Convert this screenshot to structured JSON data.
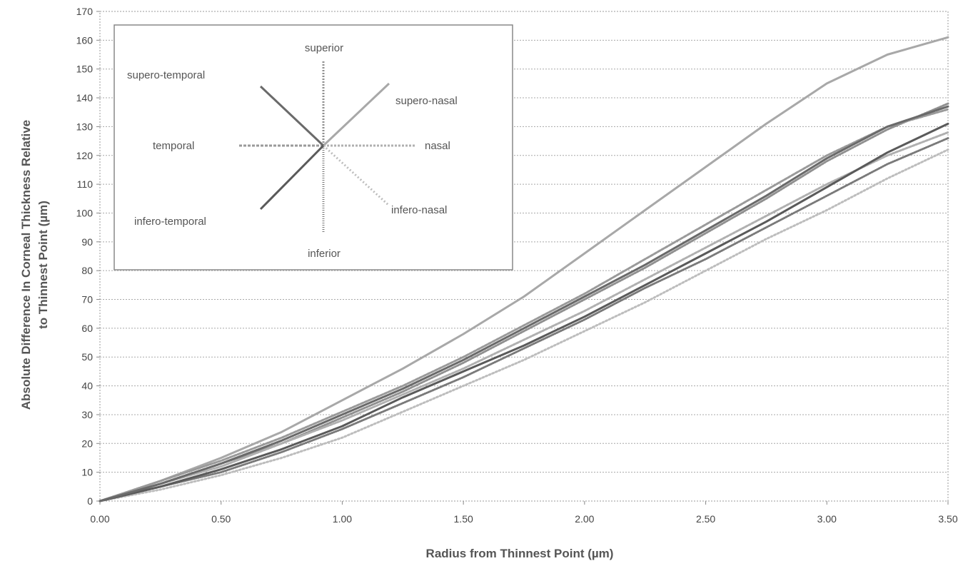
{
  "chart_data": {
    "type": "line",
    "title": "",
    "xlabel": "Radius from Thinnest Point (µm)",
    "ylabel_lines": [
      "Absolute Difference In Corneal Thickness Relative",
      "to Thinnest Point (µm)"
    ],
    "xlim": [
      0,
      3.5
    ],
    "ylim": [
      0,
      170
    ],
    "x_ticks": [
      0,
      0.5,
      1.0,
      1.5,
      2.0,
      2.5,
      3.0,
      3.5
    ],
    "x_tick_labels": [
      "0.00",
      "0.50",
      "1.00",
      "1.50",
      "2.00",
      "2.50",
      "3.00",
      "3.50"
    ],
    "y_ticks": [
      0,
      10,
      20,
      30,
      40,
      50,
      60,
      70,
      80,
      90,
      100,
      110,
      120,
      130,
      140,
      150,
      160,
      170
    ],
    "y_tick_labels": [
      "0",
      "10",
      "20",
      "30",
      "40",
      "50",
      "60",
      "70",
      "80",
      "90",
      "100",
      "110",
      "120",
      "130",
      "140",
      "150",
      "160",
      "170"
    ],
    "grid": "horizontal dotted",
    "legend_placement": "top-left",
    "x": [
      0,
      0.25,
      0.5,
      0.75,
      1.0,
      1.25,
      1.5,
      1.75,
      2.0,
      2.25,
      2.5,
      2.75,
      3.0,
      3.25,
      3.5
    ],
    "series": [
      {
        "name": "superior",
        "color": "#909090",
        "dash": "2,2",
        "values": [
          0,
          6,
          13,
          20,
          29,
          38,
          48,
          59,
          70,
          81,
          93,
          105,
          118,
          129,
          138
        ]
      },
      {
        "name": "supero-nasal",
        "color": "#a8a8a8",
        "dash": "",
        "values": [
          0,
          7,
          15,
          24,
          35,
          46,
          58,
          71,
          86,
          101,
          116,
          131,
          145,
          155,
          161
        ]
      },
      {
        "name": "nasal",
        "color": "#b0b0b0",
        "dash": "3,2",
        "values": [
          0,
          6,
          12,
          20,
          28,
          37,
          46,
          56,
          66,
          77,
          88,
          99,
          110,
          120,
          128
        ]
      },
      {
        "name": "inferO-nasal",
        "color": "#bdbdbd",
        "dash": "2,3",
        "values": [
          0,
          4,
          9,
          15,
          22,
          31,
          40,
          49,
          59,
          69,
          80,
          91,
          101,
          112,
          122
        ]
      },
      {
        "name": "inferior",
        "color": "#7a7a7a",
        "dash": "1,2",
        "values": [
          0,
          5,
          10,
          17,
          25,
          34,
          43,
          53,
          63,
          74,
          84,
          95,
          106,
          117,
          126
        ]
      },
      {
        "name": "infero-temporal",
        "color": "#5a5a5a",
        "dash": "",
        "values": [
          0,
          5,
          11,
          18,
          26,
          36,
          45,
          54,
          64,
          75,
          86,
          97,
          109,
          121,
          131
        ]
      },
      {
        "name": "temporal",
        "color": "#9a9a9a",
        "dash": "4,2",
        "values": [
          0,
          7,
          14,
          22,
          31,
          40,
          50,
          61,
          72,
          84,
          96,
          108,
          120,
          130,
          136
        ]
      },
      {
        "name": "supero-temporal",
        "color": "#6a6a6a",
        "dash": "",
        "values": [
          0,
          6,
          13,
          21,
          30,
          39,
          49,
          60,
          71,
          82,
          94,
          106,
          119,
          130,
          137
        ]
      }
    ],
    "legend": {
      "superior": "superior",
      "supero_nasal": "supero-nasal",
      "nasal": "nasal",
      "infero_nasal": "infero-nasal",
      "inferior": "inferior",
      "infero_temporal": "infero-temporal",
      "temporal": "temporal",
      "supero_temporal": "supero-temporal"
    }
  }
}
